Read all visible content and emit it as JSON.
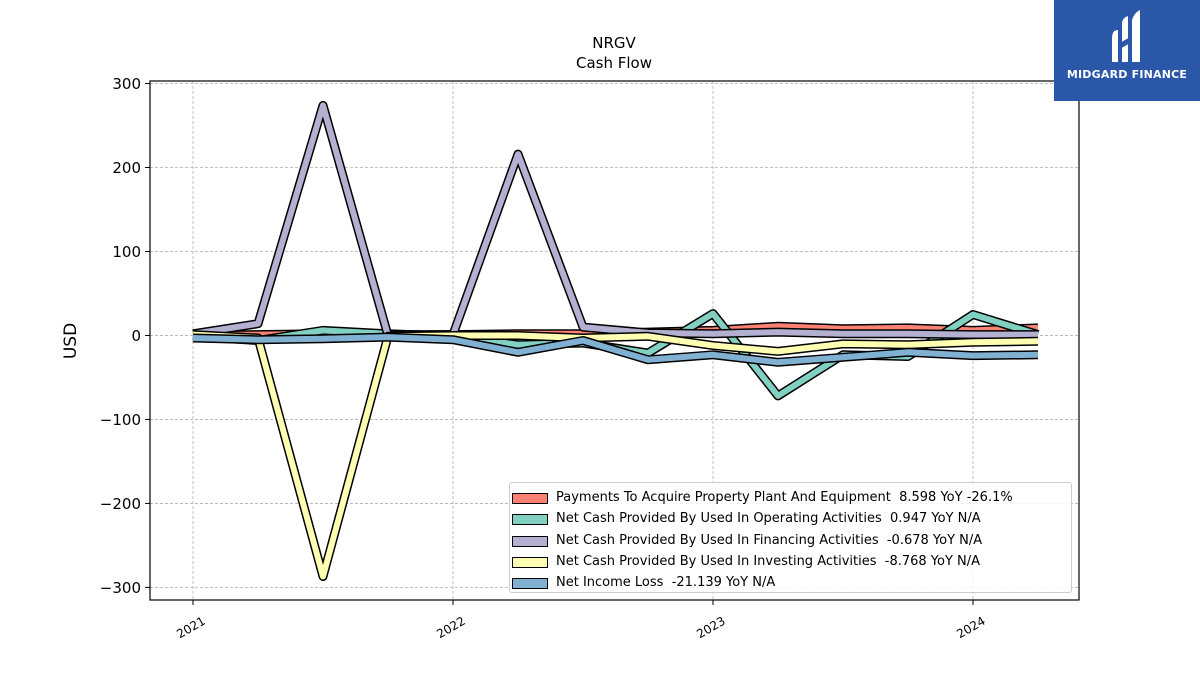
{
  "chart_data": {
    "type": "line",
    "title": "NRGV",
    "subtitle": "Cash Flow",
    "ylabel": "USD",
    "ylim": [
      -315,
      303
    ],
    "yticks": [
      300,
      200,
      100,
      0,
      -100,
      -200,
      -300
    ],
    "ytick_labels": [
      "300",
      "200",
      "100",
      "0",
      "−100",
      "−200",
      "−300"
    ],
    "xtick_labels": [
      "2021",
      "2022",
      "2023",
      "2024"
    ],
    "grid": true,
    "legend_position": "lower-right",
    "x": [
      "2021-01",
      "2021-04",
      "2021-07",
      "2021-10",
      "2022-01",
      "2022-04",
      "2022-07",
      "2022-10",
      "2023-01",
      "2023-04",
      "2023-07",
      "2023-10",
      "2024-01",
      "2024-04"
    ],
    "series": [
      {
        "name": "Payments To Acquire Property Plant And Equipment  8.598 YoY -26.1%",
        "color": "#fa8174",
        "values": [
          0,
          1,
          2,
          1,
          1,
          2,
          2,
          4,
          6,
          11,
          8,
          9,
          6,
          9
        ]
      },
      {
        "name": "Net Cash Provided By Used In Operating Activities  0.947 YoY N/A",
        "color": "#81d0c2",
        "values": [
          -1,
          -6,
          6,
          2,
          -1,
          -11,
          -9,
          -21,
          26,
          -72,
          -23,
          -25,
          25,
          1
        ]
      },
      {
        "name": "Net Cash Provided By Used In Financing Activities  -0.678 YoY N/A",
        "color": "#b3b0d1",
        "values": [
          2,
          14,
          274,
          0,
          1,
          216,
          10,
          3,
          2,
          4,
          2,
          2,
          1,
          1
        ]
      },
      {
        "name": "Net Cash Provided By Used In Investing Activities  -8.768 YoY N/A",
        "color": "#fefeb3",
        "values": [
          1,
          -3,
          -287,
          -1,
          0,
          0,
          -3,
          -1,
          -12,
          -19,
          -10,
          -11,
          -8,
          -7
        ]
      },
      {
        "name": "Net Income Loss  -21.139 YoY N/A",
        "color": "#80b1d3",
        "values": [
          -3,
          -5,
          -4,
          -2,
          -5,
          -20,
          -6,
          -29,
          -23,
          -32,
          -26,
          -20,
          -24,
          -23
        ]
      }
    ]
  },
  "logo": {
    "text": "MIDGARD FINANCE",
    "color": "#2a57a8"
  }
}
